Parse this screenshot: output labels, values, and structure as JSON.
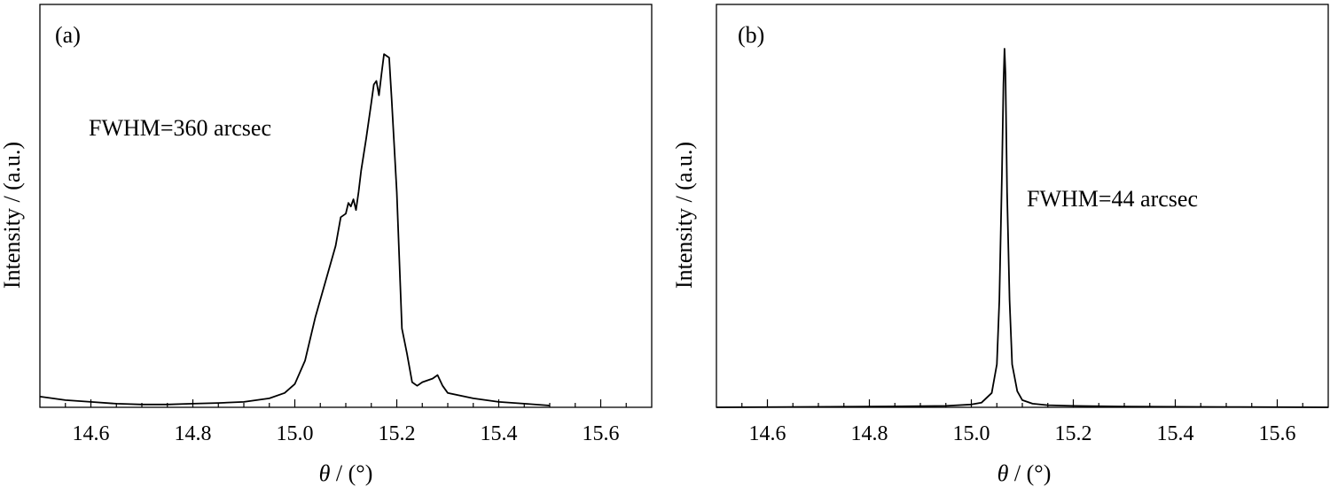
{
  "chart_data": [
    {
      "type": "line",
      "panel_label": "(a)",
      "xlabel_symbol": "θ",
      "xlabel_unit": " / (°)",
      "ylabel": "Intensity / (a.u.)",
      "annotation": "FWHM=360 arcsec",
      "xlim": [
        14.5,
        15.7
      ],
      "ylim": [
        0,
        1
      ],
      "xticks": [
        14.6,
        14.8,
        15.0,
        15.2,
        15.4,
        15.6
      ],
      "xtick_labels": [
        "14.6",
        "14.8",
        "15.0",
        "15.2",
        "15.4",
        "15.6"
      ],
      "series": [
        {
          "x": [
            14.5,
            14.55,
            14.6,
            14.65,
            14.7,
            14.75,
            14.8,
            14.85,
            14.9,
            14.95,
            14.98,
            15.0,
            15.02,
            15.04,
            15.06,
            15.08,
            15.09,
            15.1,
            15.105,
            15.11,
            15.115,
            15.12,
            15.125,
            15.13,
            15.14,
            15.15,
            15.155,
            15.16,
            15.165,
            15.17,
            15.175,
            15.18,
            15.185,
            15.19,
            15.2,
            15.21,
            15.22,
            15.23,
            15.24,
            15.25,
            15.26,
            15.27,
            15.28,
            15.29,
            15.3,
            15.35,
            15.4,
            15.45,
            15.5
          ],
          "y": [
            0.03,
            0.02,
            0.015,
            0.01,
            0.008,
            0.008,
            0.01,
            0.012,
            0.015,
            0.025,
            0.04,
            0.065,
            0.13,
            0.25,
            0.35,
            0.45,
            0.53,
            0.54,
            0.57,
            0.56,
            0.58,
            0.55,
            0.6,
            0.66,
            0.75,
            0.85,
            0.9,
            0.91,
            0.87,
            0.93,
            0.985,
            0.98,
            0.975,
            0.86,
            0.6,
            0.22,
            0.15,
            0.07,
            0.06,
            0.07,
            0.075,
            0.08,
            0.09,
            0.06,
            0.04,
            0.025,
            0.015,
            0.01,
            0.005
          ]
        }
      ]
    },
    {
      "type": "line",
      "panel_label": "(b)",
      "xlabel_symbol": "θ",
      "xlabel_unit": " / (°)",
      "ylabel": "Intensity / (a.u.)",
      "annotation": "FWHM=44 arcsec",
      "xlim": [
        14.5,
        15.7
      ],
      "ylim": [
        0,
        1
      ],
      "xticks": [
        14.6,
        14.8,
        15.0,
        15.2,
        15.4,
        15.6
      ],
      "xtick_labels": [
        "14.6",
        "14.8",
        "15.0",
        "15.2",
        "15.4",
        "15.6"
      ],
      "series": [
        {
          "x": [
            14.5,
            14.8,
            14.95,
            15.0,
            15.02,
            15.04,
            15.05,
            15.055,
            15.06,
            15.063,
            15.065,
            15.067,
            15.07,
            15.075,
            15.08,
            15.09,
            15.1,
            15.12,
            15.15,
            15.2,
            15.3,
            15.5,
            15.7
          ],
          "y": [
            0.0,
            0.002,
            0.004,
            0.008,
            0.013,
            0.04,
            0.12,
            0.3,
            0.65,
            0.9,
            1.0,
            0.93,
            0.6,
            0.3,
            0.12,
            0.045,
            0.02,
            0.01,
            0.006,
            0.004,
            0.002,
            0.001,
            0.0
          ]
        }
      ]
    }
  ]
}
